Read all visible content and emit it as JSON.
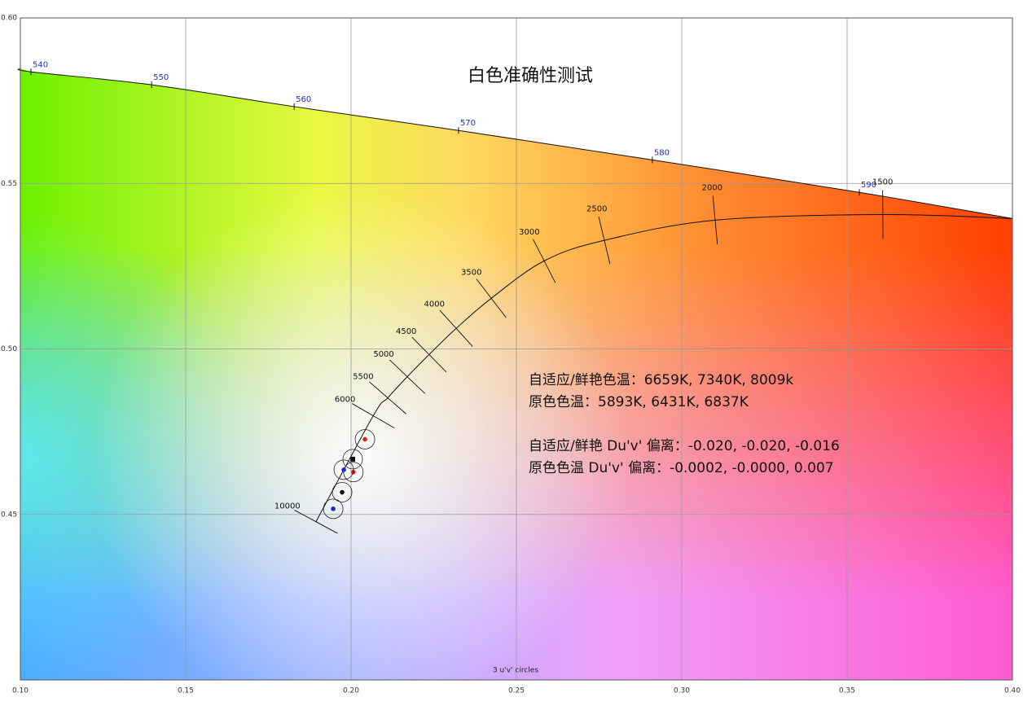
{
  "chart_data": {
    "type": "chromaticity",
    "title": "白色准确性测试",
    "xlim": [
      0.1,
      0.4
    ],
    "ylim": [
      0.4,
      0.6
    ],
    "xticks": [
      {
        "value": 0.1,
        "label": "0.10"
      },
      0.15,
      {
        "value": 0.2,
        "label": "0.20"
      },
      0.25,
      {
        "value": 0.3,
        "label": "0.30"
      },
      0.35,
      {
        "value": 0.4,
        "label": "0.40"
      }
    ],
    "yticks": [
      0.45,
      {
        "value": 0.5,
        "label": "0.50"
      },
      0.55,
      {
        "value": 0.6,
        "label": "0.60"
      }
    ],
    "grid": true,
    "spectral_locus": {
      "wavelengths": [
        null,
        540,
        550,
        560,
        570,
        580,
        590,
        null
      ],
      "u": [
        0.1,
        0.1032,
        0.1397,
        0.1828,
        0.2325,
        0.2911,
        0.3537,
        0.4
      ],
      "v": [
        0.5847,
        0.5837,
        0.5798,
        0.5732,
        0.566,
        0.5571,
        0.5473,
        0.5394
      ]
    },
    "planckian_locus": {
      "cct": [
        10000,
        6000,
        5500,
        5000,
        4500,
        4000,
        3500,
        3000,
        2500,
        2000,
        1500,
        null
      ],
      "u": [
        0.1894,
        0.2067,
        0.2111,
        0.217,
        0.2236,
        0.2318,
        0.2424,
        0.2584,
        0.2766,
        0.3101,
        0.3608,
        0.4
      ],
      "v": [
        0.4478,
        0.4798,
        0.4852,
        0.4916,
        0.4983,
        0.5062,
        0.5153,
        0.5266,
        0.5328,
        0.5389,
        0.5406,
        0.5394
      ]
    },
    "measurements": {
      "u": [
        0.2042,
        0.2005,
        0.2007,
        0.1978,
        0.1973,
        0.1946
      ],
      "v": [
        0.4727,
        0.4667,
        0.4628,
        0.4635,
        0.4567,
        0.4517
      ],
      "colors": [
        "#e02020",
        "#111111",
        "#e02020",
        "#1a2ad0",
        "#111111",
        "#1a2ad0"
      ],
      "markers": [
        "circle",
        "square",
        "circle",
        "circle",
        "circle",
        "circle"
      ]
    },
    "circle_note": "3  u'v' circles",
    "notes": [
      "自适应/鲜艳色温：6659K, 7340K, 8009k",
      "原色色温：5893K, 6431K, 6837K",
      "自适应/鲜艳 Du'v' 偏离：-0.020, -0.020, -0.016",
      "原色色温 Du'v' 偏离：-0.0002, -0.0000, 0.007"
    ]
  }
}
